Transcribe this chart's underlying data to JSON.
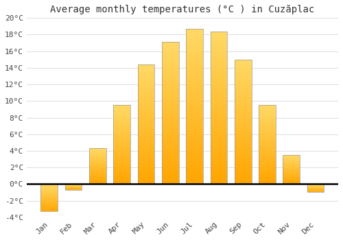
{
  "title": "Average monthly temperatures (°C ) in Cuzăplac",
  "months": [
    "Jan",
    "Feb",
    "Mar",
    "Apr",
    "May",
    "Jun",
    "Jul",
    "Aug",
    "Sep",
    "Oct",
    "Nov",
    "Dec"
  ],
  "values": [
    -3.3,
    -0.7,
    4.3,
    9.5,
    14.4,
    17.1,
    18.7,
    18.4,
    15.0,
    9.5,
    3.5,
    -1.0
  ],
  "bar_color_top": "#FFD966",
  "bar_color_bottom": "#FFA500",
  "bar_edge_color": "#999999",
  "background_color": "#FFFFFF",
  "plot_bg_color": "#FFFFFF",
  "grid_color": "#DDDDDD",
  "ylim": [
    -4,
    20
  ],
  "yticks": [
    -4,
    -2,
    0,
    2,
    4,
    6,
    8,
    10,
    12,
    14,
    16,
    18,
    20
  ],
  "title_fontsize": 10,
  "tick_fontsize": 8,
  "figsize": [
    5.0,
    3.5
  ],
  "dpi": 100
}
